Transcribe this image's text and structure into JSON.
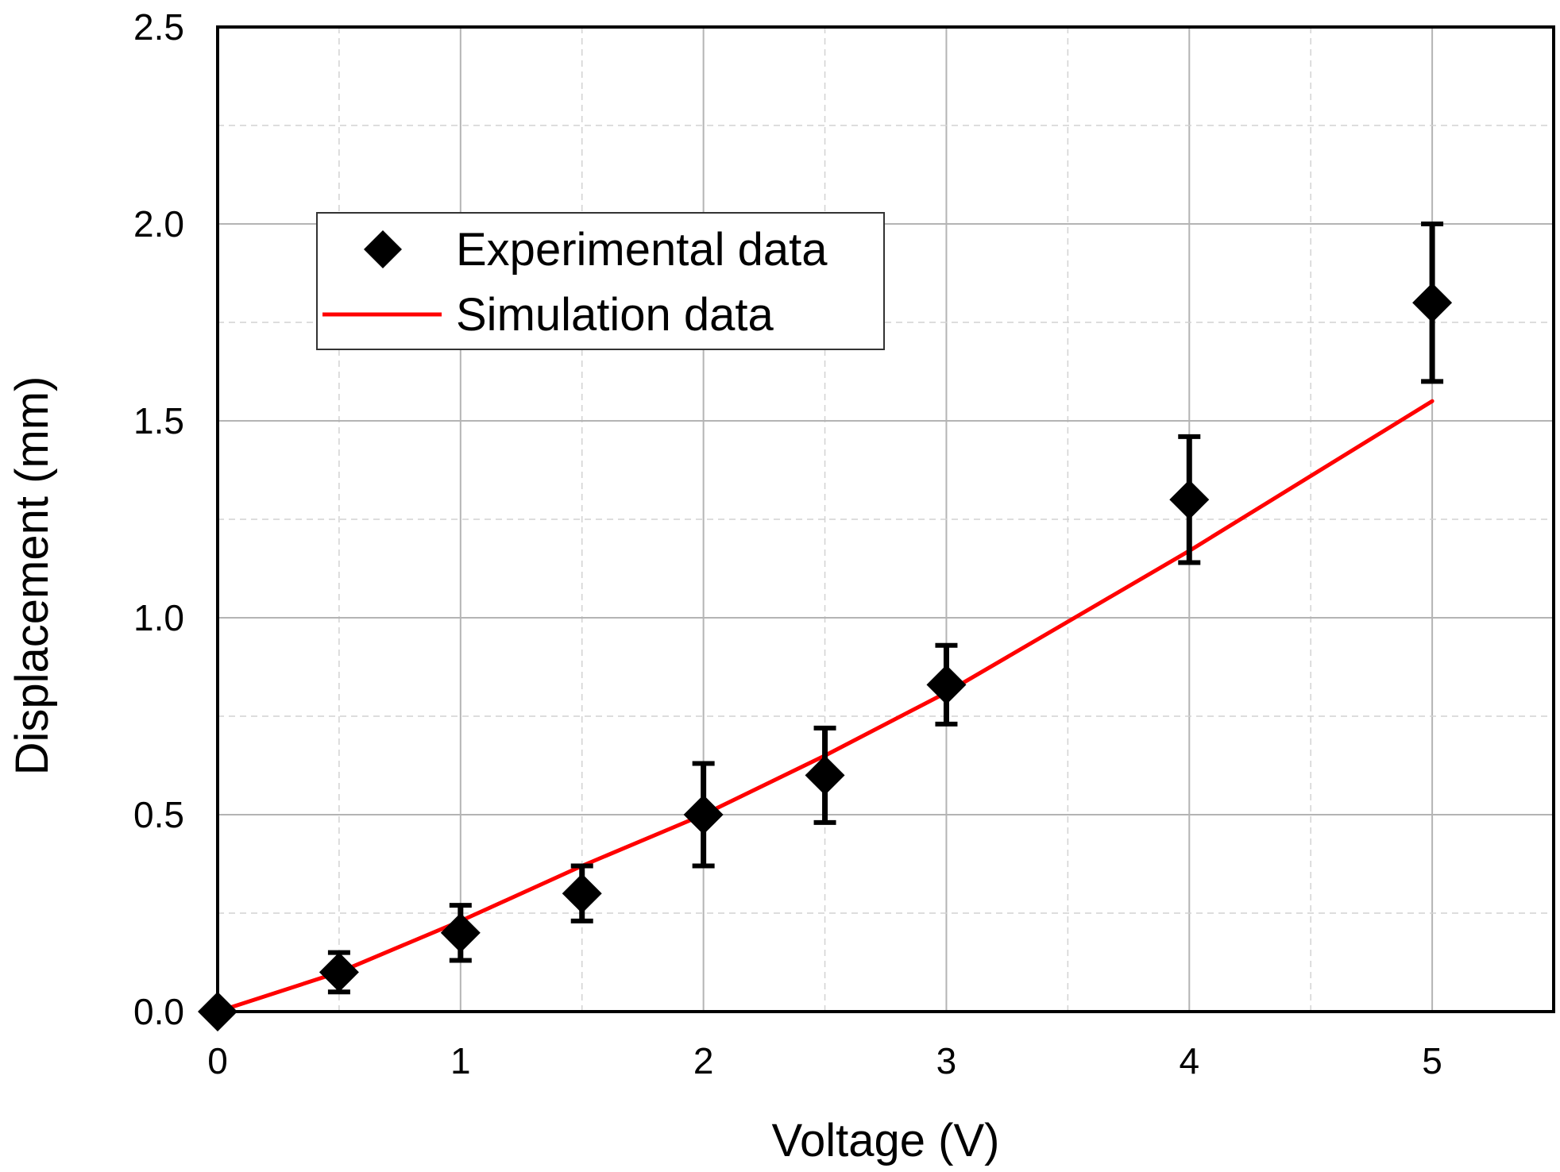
{
  "chart_data": {
    "type": "scatter",
    "title": "",
    "xlabel": "Voltage (V)",
    "ylabel": "Displacement (mm)",
    "xlim": [
      0,
      5.5
    ],
    "ylim": [
      0,
      2.5
    ],
    "x_ticks": [
      0,
      1,
      2,
      3,
      4,
      5
    ],
    "x_tick_labels": [
      "0",
      "1",
      "2",
      "3",
      "4",
      "5"
    ],
    "y_ticks": [
      0,
      0.5,
      1.0,
      1.5,
      2.0,
      2.5
    ],
    "y_tick_labels": [
      "0.0",
      "0.5",
      "1.0",
      "1.5",
      "2.0",
      "2.5"
    ],
    "grid": true,
    "legend_position": "upper-left",
    "series": [
      {
        "name": "Experimental data",
        "kind": "scatter",
        "marker": "diamond",
        "color": "#000000",
        "x": [
          0,
          0.5,
          1,
          1.5,
          2,
          2.5,
          3,
          4,
          5
        ],
        "y": [
          0.0,
          0.1,
          0.2,
          0.3,
          0.5,
          0.6,
          0.83,
          1.3,
          1.8
        ],
        "y_lower": [
          0.0,
          0.05,
          0.13,
          0.23,
          0.37,
          0.48,
          0.73,
          1.14,
          1.6
        ],
        "y_upper": [
          0.0,
          0.15,
          0.27,
          0.37,
          0.63,
          0.72,
          0.93,
          1.46,
          2.0
        ]
      },
      {
        "name": "Simulation data",
        "kind": "line",
        "color": "#ff0000",
        "x": [
          0,
          0.5,
          1,
          1.5,
          2,
          2.5,
          3,
          4,
          5
        ],
        "y": [
          0.0,
          0.1,
          0.23,
          0.37,
          0.5,
          0.65,
          0.81,
          1.17,
          1.55
        ]
      }
    ]
  }
}
